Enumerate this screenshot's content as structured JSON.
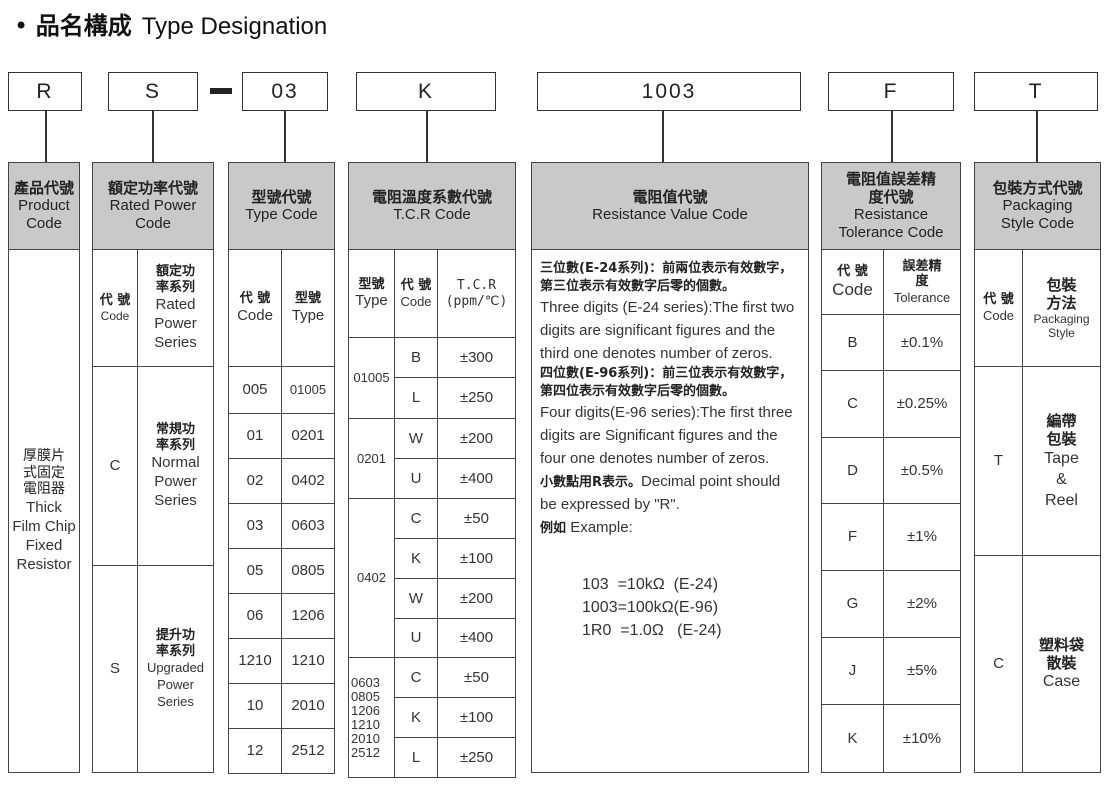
{
  "title": {
    "bullet": "•",
    "zh": "品名構成",
    "en": "Type Designation"
  },
  "codes": [
    "R",
    "S",
    "03",
    "K",
    "1003",
    "F",
    "T"
  ],
  "product": {
    "zh": "產品代號",
    "en": "Product Code",
    "desc_zh": "厚膜片式固定電阻器",
    "desc_en": "Thick Film Chip Fixed Resistor"
  },
  "power": {
    "zh": "額定功率代號",
    "en": "Rated Power Code",
    "sub_code_zh": "代 號",
    "sub_code_en": "Code",
    "sub_series_zh": "額定功率系列",
    "sub_series_en": "Rated Power Series",
    "rows": [
      {
        "code": "C",
        "zh": "常規功率系列",
        "en": "Normal Power Series"
      },
      {
        "code": "S",
        "zh": "提升功率系列",
        "en": "Upgraded Power Series"
      }
    ]
  },
  "type": {
    "zh": "型號代號",
    "en": "Type Code",
    "sub_code_zh": "代 號",
    "sub_code_en": "Code",
    "sub_type_zh": "型號",
    "sub_type_en": "Type",
    "rows": [
      [
        "005",
        "01005"
      ],
      [
        "01",
        "0201"
      ],
      [
        "02",
        "0402"
      ],
      [
        "03",
        "0603"
      ],
      [
        "05",
        "0805"
      ],
      [
        "06",
        "1206"
      ],
      [
        "1210",
        "1210"
      ],
      [
        "10",
        "2010"
      ],
      [
        "12",
        "2512"
      ]
    ]
  },
  "tcr": {
    "zh": "電阻溫度系數代號",
    "en": "T.C.R Code",
    "sub_type_zh": "型號",
    "sub_type_en": "Type",
    "sub_code_zh": "代 號",
    "sub_code_en": "Code",
    "sub_tcr": "T.C.R",
    "sub_unit": "(ppm/℃)",
    "groups": [
      {
        "type": "01005",
        "rows": [
          [
            "B",
            "±300"
          ],
          [
            "L",
            "±250"
          ]
        ]
      },
      {
        "type": "0201",
        "rows": [
          [
            "W",
            "±200"
          ],
          [
            "U",
            "±400"
          ]
        ]
      },
      {
        "type": "0402",
        "rows": [
          [
            "C",
            "±50"
          ],
          [
            "K",
            "±100"
          ],
          [
            "W",
            "±200"
          ],
          [
            "U",
            "±400"
          ]
        ]
      },
      {
        "type": "0603\n0805\n1206\n1210\n2010\n2512",
        "rows": [
          [
            "C",
            "±50"
          ],
          [
            "K",
            "±100"
          ],
          [
            "L",
            "±250"
          ]
        ]
      }
    ]
  },
  "resistance": {
    "zh": "電阻值代號",
    "en": "Resistance Value Code",
    "p1_zh": "三位數(E-24系列)：前兩位表示有效數字，第三位表示有效數字后零的個數。",
    "p1_en": "Three digits (E-24 series):The first two digits are significant figures and the third one denotes number of zeros.",
    "p2_zh": "四位數(E-96系列)：前三位表示有效數字，第四位表示有效數字后零的個數。",
    "p2_en": "Four digits(E-96 series):The first three digits are Significant figures and the four one denotes number of zeros.",
    "p3_zh": "小數點用R表示。",
    "p3_en": "Decimal point should be expressed by \"R\".",
    "p4_zh": "例如",
    "p4_en": "Example:",
    "examples": [
      "103  =10kΩ  (E-24)",
      "1003=100kΩ(E-96)",
      "1R0  =1.0Ω   (E-24)"
    ]
  },
  "tolerance": {
    "zh": "電阻值誤差精度代號",
    "en": "Resistance Tolerance Code",
    "sub_code_zh": "代 號",
    "sub_code_en": "Code",
    "sub_tol_zh": "誤差精度",
    "sub_tol_en": "Tolerance",
    "rows": [
      [
        "B",
        "±0.1%"
      ],
      [
        "C",
        "±0.25%"
      ],
      [
        "D",
        "±0.5%"
      ],
      [
        "F",
        "±1%"
      ],
      [
        "G",
        "±2%"
      ],
      [
        "J",
        "±5%"
      ],
      [
        "K",
        "±10%"
      ]
    ]
  },
  "packaging": {
    "zh": "包裝方式代號",
    "en": "Packaging Style Code",
    "sub_code_zh": "代 號",
    "sub_code_en": "Code",
    "sub_method_zh": "包裝方法",
    "sub_method_en": "Packaging Style",
    "rows": [
      {
        "code": "T",
        "zh": "編帶包裝",
        "en": "Tape & Reel"
      },
      {
        "code": "C",
        "zh": "塑料袋散裝",
        "en": "Case"
      }
    ]
  }
}
